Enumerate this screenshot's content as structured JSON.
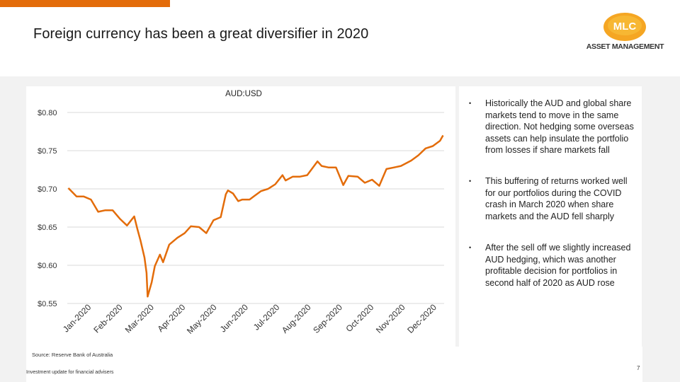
{
  "header": {
    "title": "Foreign currency has been a great diversifier in 2020",
    "logo_mark": "MLC",
    "logo_caption": "ASSET MANAGEMENT",
    "accent_color": "#e36c0a"
  },
  "bullets": [
    "Historically the AUD and global share markets tend to move in the same direction. Not hedging some overseas assets can help insulate the portfolio from losses if share markets fall",
    "This buffering of returns worked well for our portfolios during the COVID crash in March 2020 when share markets and the AUD fell sharply",
    "After the sell off we slightly increased AUD hedging, which was another profitable decision for portfolios in second half of 2020 as AUD rose"
  ],
  "bullet_symbol": "•",
  "footer": {
    "source": "Source: Reserve Bank of Australia",
    "note": "Investment update for financial advisers",
    "page_number": "7"
  },
  "chart_data": {
    "type": "line",
    "title": "AUD:USD",
    "xlabel": "",
    "ylabel": "",
    "ylim": [
      0.55,
      0.8
    ],
    "y_ticks": [
      0.8,
      0.75,
      0.7,
      0.65,
      0.6,
      0.55
    ],
    "y_tick_labels": [
      "$0.80",
      "$0.75",
      "$0.70",
      "$0.65",
      "$0.60",
      "$0.55"
    ],
    "x_tick_labels": [
      "Jan-2020",
      "Feb-2020",
      "Mar-2020",
      "Apr-2020",
      "May-2020",
      "Jun-2020",
      "Jul-2020",
      "Aug-2020",
      "Sep-2020",
      "Oct-2020",
      "Nov-2020",
      "Dec-2020"
    ],
    "grid": "horizontal",
    "legend": "none",
    "line_color": "#e36c0a",
    "series": [
      {
        "x": [
          "2020-01-02",
          "2020-01-10",
          "2020-01-17",
          "2020-01-24",
          "2020-01-31",
          "2020-02-07",
          "2020-02-14",
          "2020-02-21",
          "2020-02-28",
          "2020-03-06",
          "2020-03-09",
          "2020-03-12",
          "2020-03-16",
          "2020-03-18",
          "2020-03-19",
          "2020-03-23",
          "2020-03-26",
          "2020-03-31",
          "2020-04-03",
          "2020-04-09",
          "2020-04-17",
          "2020-04-24",
          "2020-04-30",
          "2020-05-08",
          "2020-05-15",
          "2020-05-22",
          "2020-05-29",
          "2020-06-03",
          "2020-06-05",
          "2020-06-10",
          "2020-06-15",
          "2020-06-19",
          "2020-06-26",
          "2020-06-30",
          "2020-07-07",
          "2020-07-14",
          "2020-07-21",
          "2020-07-28",
          "2020-07-31",
          "2020-08-07",
          "2020-08-14",
          "2020-08-21",
          "2020-08-31",
          "2020-09-04",
          "2020-09-11",
          "2020-09-18",
          "2020-09-25",
          "2020-09-30",
          "2020-10-09",
          "2020-10-16",
          "2020-10-23",
          "2020-10-30",
          "2020-11-06",
          "2020-11-13",
          "2020-11-20",
          "2020-11-30",
          "2020-12-07",
          "2020-12-14",
          "2020-12-21",
          "2020-12-28",
          "2020-12-31"
        ],
        "values": [
          0.701,
          0.69,
          0.69,
          0.686,
          0.67,
          0.672,
          0.672,
          0.661,
          0.652,
          0.664,
          0.648,
          0.633,
          0.61,
          0.59,
          0.559,
          0.578,
          0.599,
          0.614,
          0.604,
          0.627,
          0.636,
          0.642,
          0.651,
          0.65,
          0.642,
          0.659,
          0.663,
          0.693,
          0.698,
          0.694,
          0.684,
          0.686,
          0.686,
          0.69,
          0.697,
          0.7,
          0.706,
          0.718,
          0.711,
          0.716,
          0.716,
          0.718,
          0.736,
          0.73,
          0.728,
          0.728,
          0.705,
          0.717,
          0.716,
          0.708,
          0.712,
          0.704,
          0.726,
          0.728,
          0.73,
          0.737,
          0.744,
          0.753,
          0.756,
          0.763,
          0.77
        ]
      }
    ]
  }
}
